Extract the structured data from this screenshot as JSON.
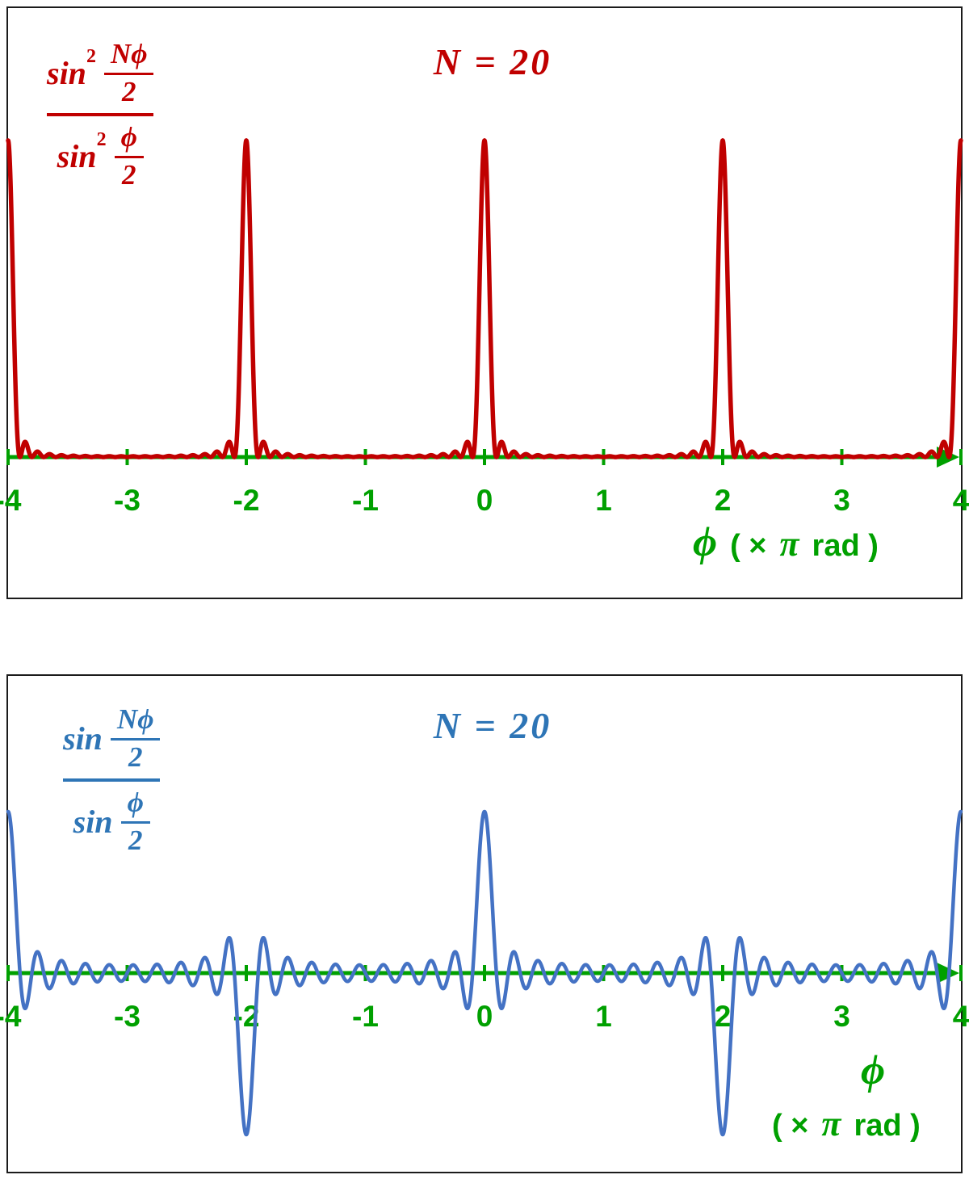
{
  "colors": {
    "axis_green": "#00A000",
    "red_curve": "#C00000",
    "blue_curve": "#4472C4",
    "blue_text": "#2E75B6",
    "border_black": "#1b1b1b"
  },
  "chart_data": [
    {
      "type": "line",
      "title": "N = 20",
      "N": 20,
      "function": "sin^2(N·ϕ/2) / sin^2(ϕ/2)",
      "squared": true,
      "x_units": "π rad",
      "x_range": [
        -4,
        4
      ],
      "y_range": [
        0,
        400
      ],
      "x_ticks": [
        "-4",
        "-3",
        "-2",
        "-1",
        "0",
        "1",
        "2",
        "3",
        "4"
      ],
      "principal_maxima": {
        "x": [
          -4,
          -2,
          0,
          2,
          4
        ],
        "value": 400
      },
      "curve_color": "#C00000",
      "axis_color": "#00A000",
      "title_color": "#C00000",
      "xlabel": {
        "phi": "ϕ",
        "pre": "( ×",
        "pi": "π",
        "post": "rad )"
      },
      "formula_display": {
        "func": "sin",
        "exp": "2",
        "num_num": "Nϕ",
        "num_den": "2",
        "den_num": "ϕ",
        "den_den": "2"
      }
    },
    {
      "type": "line",
      "title": "N = 20",
      "N": 20,
      "function": "sin(N·ϕ/2) / sin(ϕ/2)",
      "squared": false,
      "x_units": "π rad",
      "x_range": [
        -4,
        4
      ],
      "y_range": [
        -20,
        20
      ],
      "x_ticks": [
        "-4",
        "-3",
        "-2",
        "-1",
        "0",
        "1",
        "2",
        "3",
        "4"
      ],
      "maxima": {
        "x": [
          -4,
          0,
          4
        ],
        "value": 20
      },
      "minima": {
        "x": [
          -2,
          2
        ],
        "value": -20
      },
      "curve_color": "#4472C4",
      "axis_color": "#00A000",
      "title_color": "#2E75B6",
      "xlabel": {
        "phi": "ϕ",
        "pre": "( ×",
        "pi": "π",
        "post": "rad )"
      },
      "formula_display": {
        "func": "sin",
        "exp": "",
        "num_num": "Nϕ",
        "num_den": "2",
        "den_num": "ϕ",
        "den_den": "2"
      }
    }
  ]
}
